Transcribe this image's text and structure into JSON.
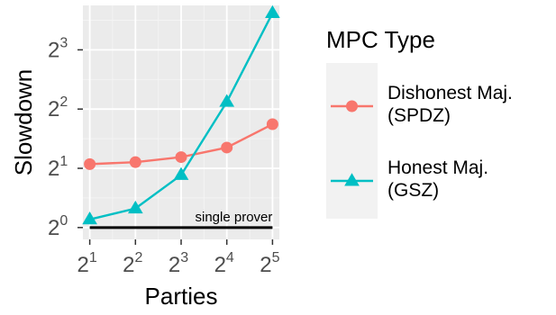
{
  "chart_data": {
    "type": "line",
    "xlabel": "Parties",
    "ylabel": "Slowdown",
    "x_scale": "log2",
    "y_scale": "log2",
    "x": [
      2,
      4,
      8,
      16,
      32
    ],
    "x_ticks": [
      {
        "base": "2",
        "exp": "1"
      },
      {
        "base": "2",
        "exp": "2"
      },
      {
        "base": "2",
        "exp": "3"
      },
      {
        "base": "2",
        "exp": "4"
      },
      {
        "base": "2",
        "exp": "5"
      }
    ],
    "y_ticks": [
      {
        "base": "2",
        "exp": "0"
      },
      {
        "base": "2",
        "exp": "1"
      },
      {
        "base": "2",
        "exp": "2"
      },
      {
        "base": "2",
        "exp": "3"
      }
    ],
    "x_exp_range": [
      0.85,
      5.15
    ],
    "y_exp_range": [
      -0.2,
      3.75
    ],
    "grid": true,
    "legend": {
      "title": "MPC Type",
      "placement": "right"
    },
    "series": [
      {
        "name_lines": [
          "Dishonest Maj.",
          "(SPDZ)"
        ],
        "color": "#F8766D",
        "marker": "circle",
        "values": [
          2.1,
          2.15,
          2.28,
          2.55,
          3.35
        ]
      },
      {
        "name_lines": [
          "Honest Maj.",
          "(GSZ)"
        ],
        "color": "#00BFC4",
        "marker": "triangle",
        "values": [
          1.1,
          1.25,
          1.85,
          4.35,
          12.3
        ]
      }
    ],
    "reference_line": {
      "value": 1,
      "label": "single prover",
      "color": "#000000"
    }
  }
}
